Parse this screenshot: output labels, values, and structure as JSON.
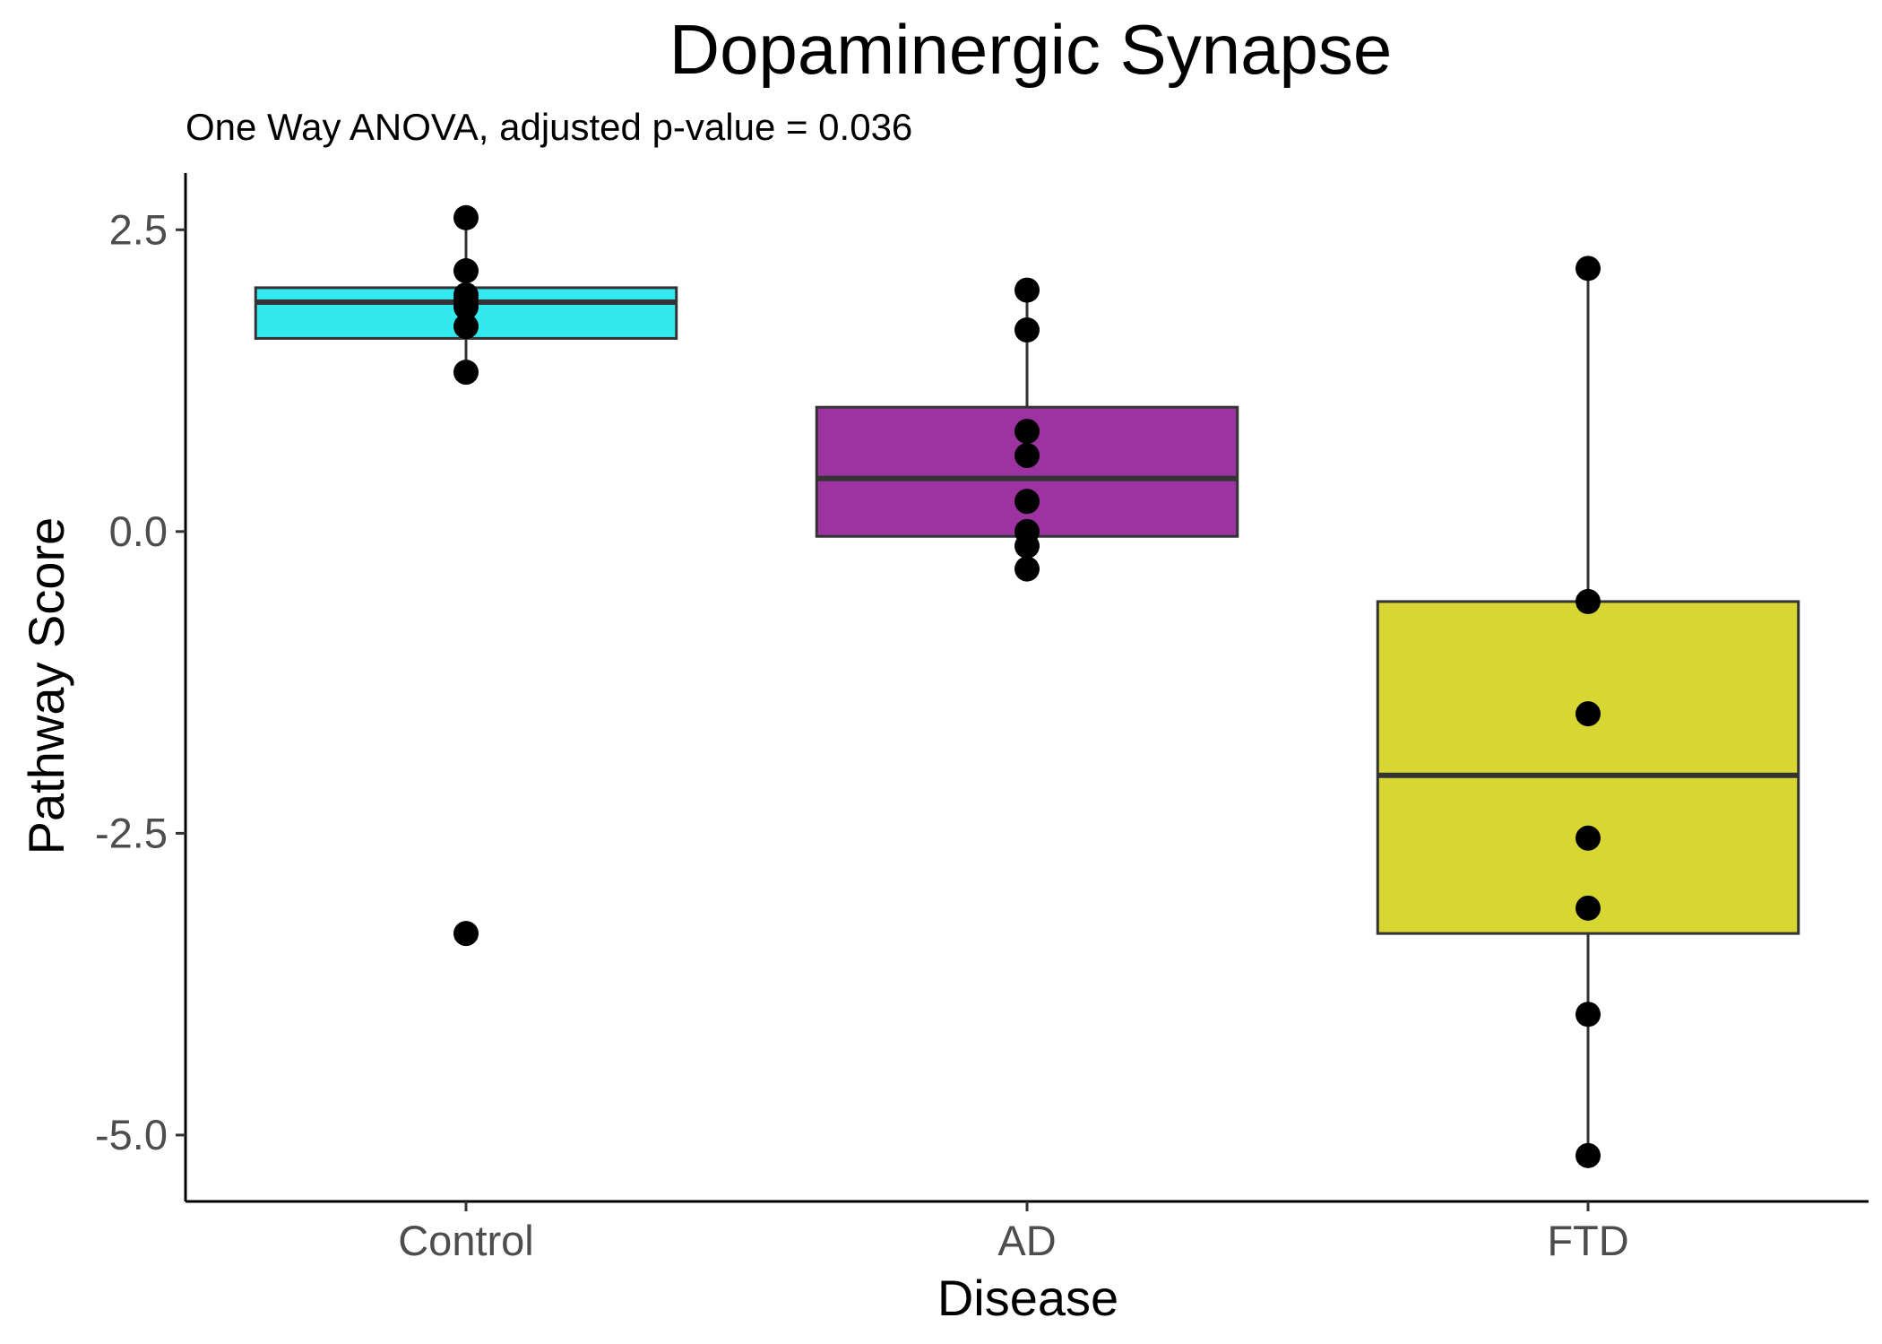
{
  "chart_data": {
    "type": "box",
    "title": "Dopaminergic Synapse",
    "subtitle": "One Way ANOVA, adjusted p-value = 0.036",
    "xlabel": "Disease",
    "ylabel": "Pathway Score",
    "ylim": [
      -5.55,
      2.97
    ],
    "yticks": [
      2.5,
      0.0,
      -2.5,
      -5.0
    ],
    "ytick_labels": [
      "2.5",
      "0.0",
      "-2.5",
      "-5.0"
    ],
    "grid": false,
    "legend": "none",
    "categories": [
      "Control",
      "AD",
      "FTD"
    ],
    "groups": [
      {
        "name": "Control",
        "color": "#33e8ee",
        "q1": 1.6,
        "median": 1.9,
        "q3": 2.02,
        "whisker_low": 1.32,
        "whisker_high": 2.6,
        "points": [
          2.6,
          2.16,
          1.96,
          1.92,
          1.86,
          1.7,
          1.32,
          -3.33
        ]
      },
      {
        "name": "AD",
        "color": "#9c33a0",
        "q1": -0.04,
        "median": 0.44,
        "q3": 1.03,
        "whisker_low": -0.31,
        "whisker_high": 2.0,
        "points": [
          2.0,
          1.67,
          0.83,
          0.63,
          0.25,
          0.0,
          -0.12,
          -0.31
        ]
      },
      {
        "name": "FTD",
        "color": "#d8d632",
        "q1": -3.33,
        "median": -2.02,
        "q3": -0.58,
        "whisker_low": -5.17,
        "whisker_high": 2.18,
        "points": [
          2.18,
          -0.58,
          -1.51,
          -2.54,
          -3.12,
          -4.0,
          -5.17
        ]
      }
    ]
  }
}
